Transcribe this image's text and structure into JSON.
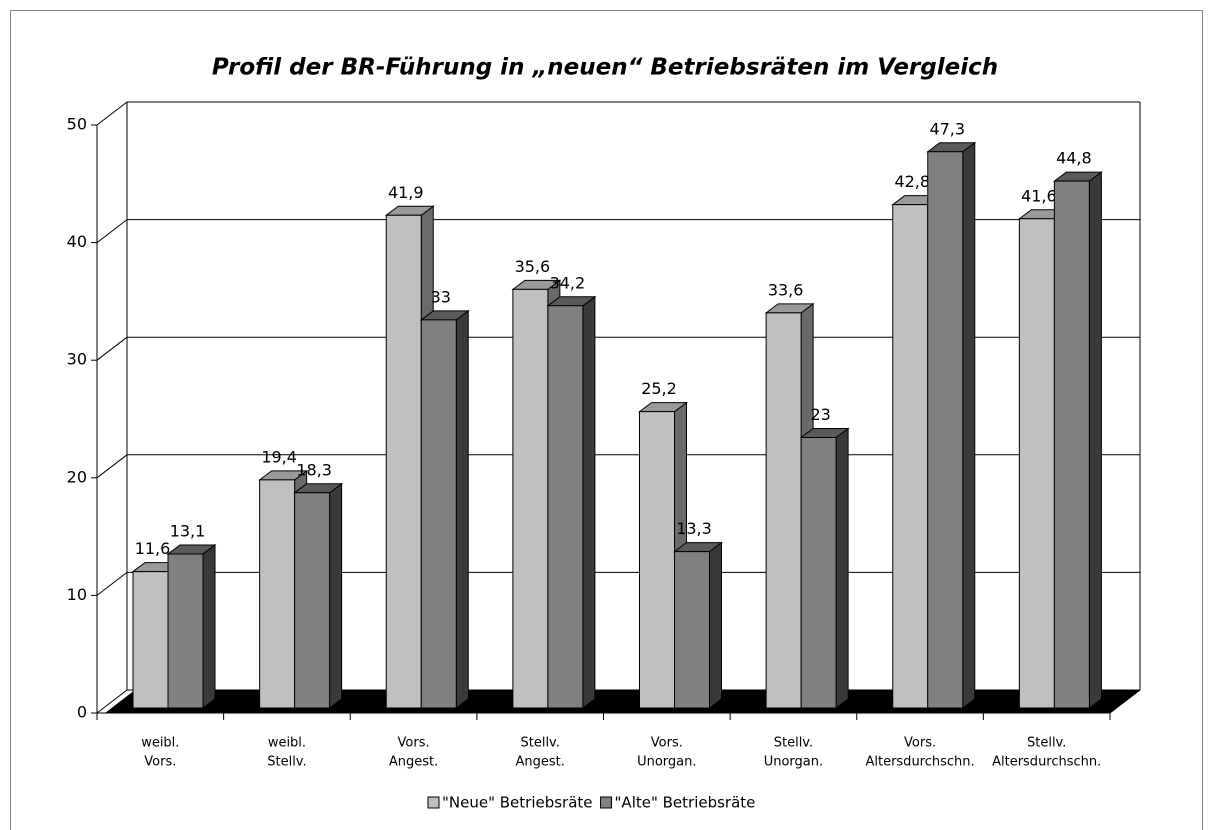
{
  "chart_data": {
    "type": "bar3d",
    "title": "Profil der BR-Führung in „neuen“ Betriebsräten im Vergleich",
    "categories": [
      [
        "weibl.",
        "Vors."
      ],
      [
        "weibl.",
        "Stellv."
      ],
      [
        "Vors.",
        "Angest."
      ],
      [
        "Stellv.",
        "Angest."
      ],
      [
        "Vors.",
        "Unorgan."
      ],
      [
        "Stellv.",
        "Unorgan."
      ],
      [
        "Vors.",
        "Altersdurchschn."
      ],
      [
        "Stellv.",
        "Altersdurchschn."
      ]
    ],
    "series": [
      {
        "name": "\"Neue\" Betriebsräte",
        "color": "#c0c0c0",
        "values": [
          11.6,
          19.4,
          41.9,
          35.6,
          25.2,
          33.6,
          42.8,
          41.6
        ],
        "value_labels": [
          "11,6",
          "19,4",
          "41,9",
          "35,6",
          "25,2",
          "33,6",
          "42,8",
          "41,6"
        ]
      },
      {
        "name": "\"Alte\" Betriebsräte",
        "color": "#808080",
        "values": [
          13.1,
          18.3,
          33,
          34.2,
          13.3,
          23,
          47.3,
          44.8
        ],
        "value_labels": [
          "13,1",
          "18,3",
          "33",
          "34,2",
          "13,3",
          "23",
          "47,3",
          "44,8"
        ]
      }
    ],
    "ylim": [
      0,
      50
    ],
    "yticks": [
      0,
      10,
      20,
      30,
      40,
      50
    ],
    "grid": true,
    "legend": "bottom"
  }
}
